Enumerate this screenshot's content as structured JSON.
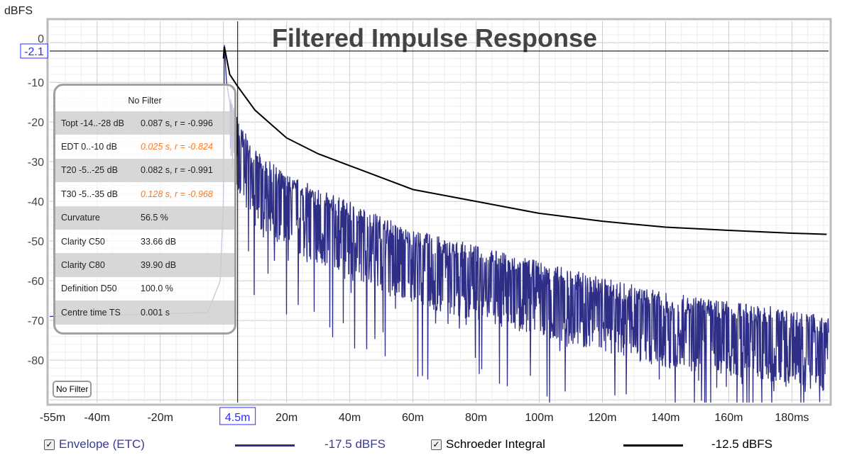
{
  "chart_data": {
    "type": "line",
    "title": "Filtered Impulse Response",
    "ylabel": "dBFS",
    "xlabel": "",
    "xlim": [
      -55,
      191.6
    ],
    "ylim": [
      -90.7,
      5.4
    ],
    "x_ticks": [
      "-55m",
      "-40m",
      "-20m",
      "20m",
      "40m",
      "60m",
      "80m",
      "100m",
      "120m",
      "140m",
      "160m",
      "180ms"
    ],
    "x_tick_values": [
      -55,
      -40,
      -20,
      20,
      40,
      60,
      80,
      100,
      120,
      140,
      160,
      180
    ],
    "y_ticks": [
      "0",
      "-10",
      "-20",
      "-30",
      "-40",
      "-50",
      "-60",
      "-70",
      "-80"
    ],
    "y_tick_values": [
      0,
      -10,
      -20,
      -30,
      -40,
      -50,
      -60,
      -70,
      -80
    ],
    "grid": true,
    "cursor": {
      "x": 4.5,
      "x_label": "4.5m",
      "y": -2.1,
      "y_label": "-2.1"
    },
    "series": [
      {
        "name": "Envelope (ETC)",
        "color": "#2e2e86",
        "level": "-17.5 dBFS",
        "x": [
          -55,
          -5,
          -1,
          0,
          0.3,
          1,
          3,
          5,
          10,
          20,
          40,
          60,
          80,
          100,
          120,
          140,
          160,
          180,
          191
        ],
        "y": [
          -69,
          -68,
          -60,
          -40,
          -0.5,
          -10,
          -20,
          -25,
          -32,
          -38,
          -45,
          -52,
          -56,
          -60,
          -64,
          -68,
          -70,
          -72,
          -74
        ]
      },
      {
        "name": "Schroeder Integral",
        "color": "#000000",
        "level": "-12.5 dBFS",
        "x": [
          0,
          0.3,
          2,
          4.5,
          10,
          20,
          30,
          40,
          60,
          80,
          100,
          120,
          140,
          160,
          180,
          191
        ],
        "y": [
          -4,
          -1,
          -8,
          -11,
          -17,
          -24,
          -28,
          -31,
          -37,
          -40,
          -43,
          -45,
          -46.5,
          -47.3,
          -48,
          -48.3
        ]
      }
    ]
  },
  "panel": {
    "title": "No Filter",
    "rows": [
      {
        "label": "Topt -14..-28 dB",
        "value": "0.087 s,  r = -0.996",
        "warn": false
      },
      {
        "label": "EDT  0..-10 dB",
        "value": "0.025 s, r = -0.824",
        "warn": true
      },
      {
        "label": "T20 -5..-25 dB",
        "value": "0.082 s,  r = -0.991",
        "warn": false
      },
      {
        "label": "T30 -5..-35 dB",
        "value": "0.128 s, r = -0.968",
        "warn": true
      },
      {
        "label": "Curvature",
        "value": "56.5 %",
        "warn": false
      },
      {
        "label": "Clarity C50",
        "value": "33.66 dB",
        "warn": false
      },
      {
        "label": "Clarity C80",
        "value": "39.90 dB",
        "warn": false
      },
      {
        "label": "Definition D50",
        "value": "100.0 %",
        "warn": false
      },
      {
        "label": "Centre time TS",
        "value": "0.001 s",
        "warn": false
      }
    ]
  },
  "filter_button": "No Filter",
  "legend": {
    "check": "✓"
  }
}
